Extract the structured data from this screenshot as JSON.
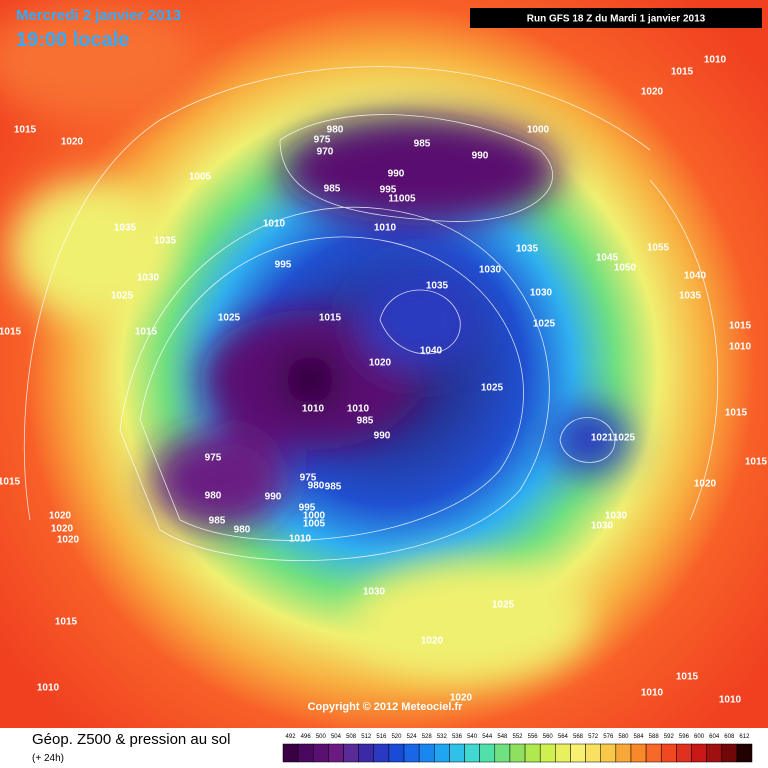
{
  "header": {
    "date": "Mercredi 2 janvier 2013",
    "time": "19:00 locale",
    "run": "Run GFS 18 Z du Mardi 1 janvier 2013"
  },
  "map": {
    "copyright": "Copyright © 2012 Meteociel.fr",
    "pressure_labels": [
      "1015",
      "1010",
      "1020",
      "1015",
      "1020",
      "975",
      "980",
      "970",
      "985",
      "990",
      "1000",
      "1005",
      "990",
      "985",
      "995",
      "11005",
      "1010",
      "1010",
      "1035",
      "1035",
      "1035",
      "1045",
      "1050",
      "1055",
      "995",
      "1030",
      "1030",
      "1040",
      "1025",
      "1035",
      "1030",
      "1035",
      "1015",
      "1025",
      "1015",
      "1025",
      "1015",
      "1015",
      "1010",
      "1040",
      "1020",
      "1025",
      "1015",
      "1010",
      "1010",
      "985",
      "990",
      "1021",
      "1025",
      "975",
      "1015",
      "975",
      "980",
      "985",
      "1020",
      "1015",
      "980",
      "990",
      "995",
      "1000",
      "1005",
      "1030",
      "1030",
      "985",
      "980",
      "1010",
      "1020",
      "1020",
      "1020",
      "1030",
      "1025",
      "1015",
      "1020",
      "1010",
      "1015",
      "1010",
      "1020",
      "1010"
    ]
  },
  "footer": {
    "title": "Géop. Z500 & pression au sol",
    "lead": "(+ 24h)"
  },
  "legend": {
    "ticks": [
      492,
      496,
      500,
      504,
      508,
      512,
      516,
      520,
      524,
      528,
      532,
      536,
      540,
      544,
      548,
      552,
      556,
      560,
      564,
      568,
      572,
      576,
      580,
      584,
      588,
      592,
      596,
      600,
      604,
      608,
      612
    ],
    "colors": [
      "#3a0044",
      "#4a0860",
      "#5a1070",
      "#6a1a82",
      "#5a2a96",
      "#3a2aa8",
      "#2a3ac0",
      "#1a4ad8",
      "#1a66e8",
      "#1a86f0",
      "#20a6f0",
      "#30c0e8",
      "#40d8d0",
      "#50e0a8",
      "#70e080",
      "#90e060",
      "#b0e850",
      "#d0f050",
      "#e8f060",
      "#f8f070",
      "#f8e060",
      "#f8c848",
      "#f8a838",
      "#f88828",
      "#f86828",
      "#f04820",
      "#e03020",
      "#c81818",
      "#a01010",
      "#700808",
      "#200000"
    ]
  }
}
